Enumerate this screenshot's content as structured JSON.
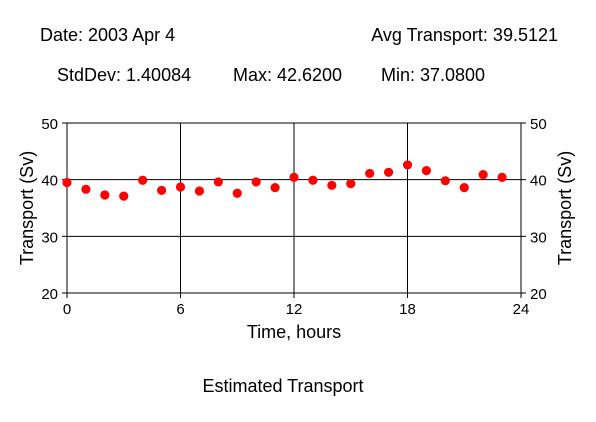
{
  "header": {
    "date": "Date: 2003 Apr 4",
    "avg": "Avg Transport: 39.5121",
    "stddev": "StdDev: 1.40084",
    "max": "Max: 42.6200",
    "min": "Min: 37.0800"
  },
  "chart_data": {
    "type": "scatter",
    "title": "Estimated Transport",
    "xlabel": "Time, hours",
    "ylabel": "Transport (Sv)",
    "ylabel_right": "Transport (Sv)",
    "xlim": [
      0,
      24
    ],
    "ylim": [
      20,
      50
    ],
    "x_ticks": [
      0,
      6,
      12,
      18,
      24
    ],
    "y_ticks": [
      20,
      30,
      40,
      50
    ],
    "grid": true,
    "marker_color": "#ff0000",
    "series": [
      {
        "x": [
          0,
          1,
          2,
          3,
          4,
          5,
          6,
          7,
          8,
          9,
          10,
          11,
          12,
          13,
          14,
          15,
          16,
          17,
          18,
          19,
          20,
          21,
          22,
          23
        ],
        "values": [
          39.5,
          38.3,
          37.3,
          37.1,
          39.9,
          38.1,
          38.7,
          38.0,
          39.6,
          37.6,
          39.6,
          38.6,
          40.4,
          39.9,
          39.0,
          39.3,
          41.1,
          41.3,
          42.6,
          41.6,
          39.8,
          38.6,
          40.9,
          40.4
        ]
      }
    ]
  }
}
